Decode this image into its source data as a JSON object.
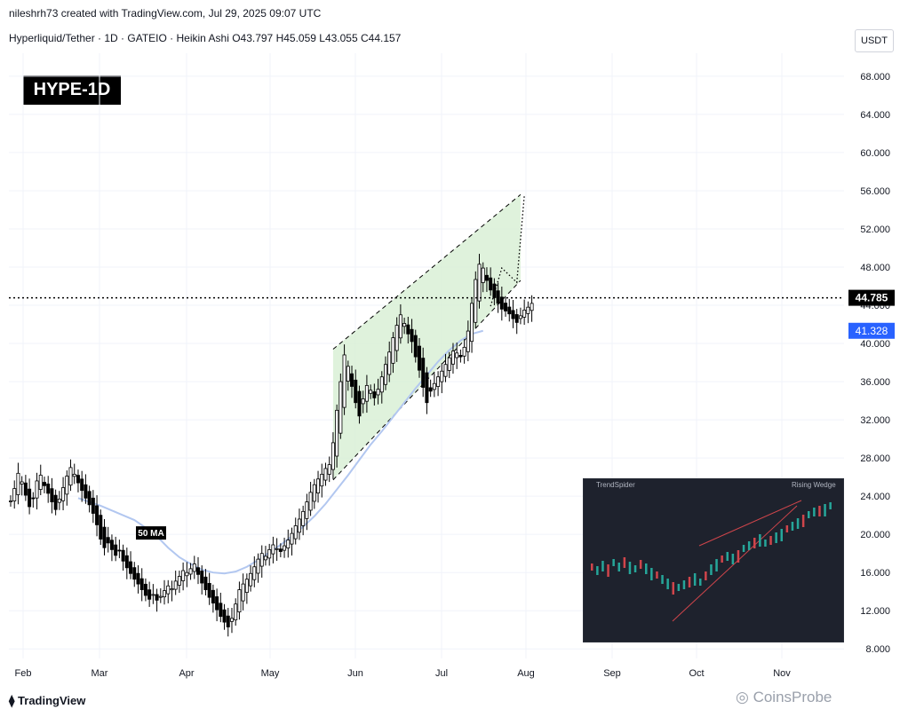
{
  "header": {
    "attribution": "nileshrh73 created with TradingView.com, Jul 29, 2025 09:07 UTC",
    "symbol_line": "Hyperliquid/Tether · 1D · GATEIO · Heikin Ashi  O43.797  H45.059  L43.055  C44.157"
  },
  "badge": "HYPE-1D",
  "currency": "USDT",
  "footer": {
    "brand": "TradingView",
    "watermark": "CoinsProbe"
  },
  "colors": {
    "up": "#ffffff",
    "down": "#000000",
    "ma": "#b2c7f0",
    "channel_fill": "#d7efd3",
    "price_line": "#000000",
    "ma_badge": "#2962ff"
  },
  "chart_data": {
    "type": "candlestick",
    "title": "HYPE-1D",
    "y_axis": {
      "ticks": [
        "68.000",
        "64.000",
        "60.000",
        "56.000",
        "52.000",
        "48.000",
        "44.000",
        "40.000",
        "36.000",
        "32.000",
        "28.000",
        "24.000",
        "20.000",
        "16.000",
        "12.000",
        "8.000"
      ],
      "range": [
        7,
        70.5
      ]
    },
    "x_axis": {
      "labels": [
        "Feb",
        "Mar",
        "Apr",
        "May",
        "Jun",
        "Jul",
        "Aug",
        "Sep",
        "Oct",
        "Nov"
      ]
    },
    "current_price": "44.785",
    "ma_value": "41.328",
    "ma_label": "50 MA",
    "pattern": "Rising Wedge",
    "inset_title": "TrendSpider",
    "closes": [
      23.5,
      24.8,
      26.4,
      25.5,
      24.1,
      22.9,
      23.8,
      25.6,
      26.2,
      25.1,
      24.3,
      23.4,
      22.6,
      23.7,
      24.9,
      26.1,
      27.0,
      26.3,
      25.4,
      24.6,
      23.8,
      23.1,
      22.2,
      21.0,
      19.5,
      18.6,
      19.1,
      18.4,
      17.8,
      18.3,
      17.2,
      16.5,
      15.9,
      15.3,
      14.8,
      14.2,
      13.6,
      13.2,
      13.7,
      13.1,
      13.5,
      14.1,
      14.6,
      14.3,
      15.1,
      15.6,
      16.2,
      16.0,
      16.4,
      16.9,
      15.8,
      14.9,
      14.2,
      13.4,
      12.8,
      12.1,
      11.4,
      10.8,
      10.3,
      11.2,
      12.7,
      14.2,
      14.8,
      15.3,
      15.9,
      16.6,
      17.4,
      18.0,
      17.7,
      18.4,
      18.9,
      18.5,
      18.2,
      18.8,
      19.4,
      20.1,
      20.9,
      21.6,
      22.4,
      23.4,
      24.4,
      25.2,
      25.8,
      26.3,
      26.9,
      27.3,
      29.6,
      33.0,
      36.0,
      38.8,
      37.6,
      35.5,
      33.8,
      32.4,
      34.2,
      35.6,
      35.1,
      34.3,
      35.2,
      36.5,
      37.8,
      39.1,
      40.6,
      41.9,
      43.0,
      42.1,
      41.0,
      40.2,
      38.6,
      37.2,
      35.4,
      33.8,
      35.0,
      35.8,
      36.5,
      37.1,
      37.8,
      38.5,
      39.2,
      39.0,
      38.6,
      39.6,
      41.3,
      44.2,
      46.7,
      48.3,
      47.9,
      46.6,
      45.6,
      44.8,
      44.2,
      43.6,
      43.4,
      43.1,
      42.6,
      42.2,
      42.9,
      43.5,
      43.8,
      44.2
    ],
    "ma50": [
      23.8,
      23.4,
      23.0,
      22.5,
      22.0,
      21.5,
      20.7,
      19.8,
      18.6,
      17.6,
      16.9,
      16.3,
      16.0,
      15.9,
      16.1,
      16.6,
      17.3,
      18.1,
      18.9,
      19.8,
      20.8,
      21.9,
      23.2,
      24.7,
      26.2,
      27.8,
      29.4,
      30.8,
      32.3,
      33.8,
      35.3,
      36.7,
      38.1,
      39.3,
      40.3,
      41.0,
      41.33
    ],
    "channel": {
      "upper": [
        [
          86,
          39.4
        ],
        [
          136,
          55.6
        ]
      ],
      "lower": [
        [
          86,
          25.7
        ],
        [
          136,
          46.6
        ]
      ]
    },
    "projection": [
      [
        128,
        43.9
      ],
      [
        131,
        47.9
      ],
      [
        135,
        46.4
      ],
      [
        137,
        55.5
      ]
    ]
  }
}
